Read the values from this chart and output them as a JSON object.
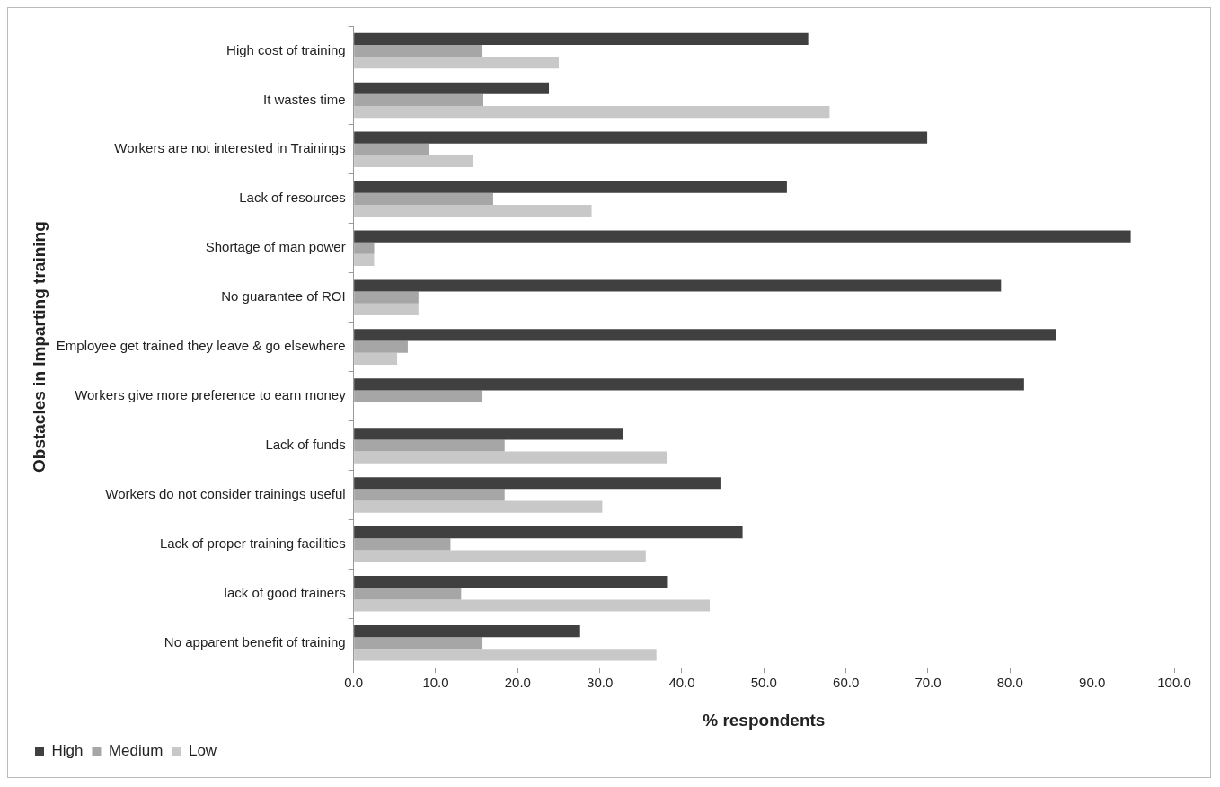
{
  "chart_data": {
    "type": "bar",
    "orientation": "horizontal",
    "xlabel": "% respondents",
    "ylabel": "Obstacles in Imparting training",
    "categories": [
      "High cost of training",
      "It wastes time",
      "Workers are not interested in Trainings",
      "Lack of resources",
      "Shortage of man power",
      "No guarantee of ROI",
      "Employee get trained they leave & go elsewhere",
      "Workers give more preference to earn money",
      "Lack of funds",
      "Workers do not consider trainings useful",
      "Lack of proper training facilities",
      "lack of good trainers",
      "No apparent benefit of training"
    ],
    "series": [
      {
        "name": "High",
        "color": "#404040",
        "values": [
          55.4,
          23.8,
          69.9,
          52.8,
          94.7,
          78.9,
          85.6,
          81.7,
          32.8,
          44.7,
          47.4,
          38.3,
          27.6
        ]
      },
      {
        "name": "Medium",
        "color": "#a6a6a6",
        "values": [
          15.7,
          15.8,
          9.2,
          17.0,
          2.5,
          7.9,
          6.6,
          15.7,
          18.4,
          18.4,
          11.8,
          13.1,
          15.7
        ]
      },
      {
        "name": "Low",
        "color": "#c8c8c8",
        "values": [
          25.0,
          58.0,
          14.5,
          29.0,
          2.5,
          7.9,
          5.3,
          0,
          38.2,
          30.3,
          35.6,
          43.4,
          36.9
        ]
      }
    ],
    "xlim": [
      0,
      100
    ],
    "xticks": [
      {
        "value": 0,
        "label": "0.0"
      },
      {
        "value": 10,
        "label": "10.0"
      },
      {
        "value": 20,
        "label": "20.0"
      },
      {
        "value": 30,
        "label": "30.0"
      },
      {
        "value": 40,
        "label": "40.0"
      },
      {
        "value": 50,
        "label": "50.0"
      },
      {
        "value": 60,
        "label": "60.0"
      },
      {
        "value": 70,
        "label": "70.0"
      },
      {
        "value": 80,
        "label": "80.0"
      },
      {
        "value": 90,
        "label": "90.0"
      },
      {
        "value": 100,
        "label": "100.0"
      }
    ],
    "grid": false,
    "legend": "bottom left"
  }
}
